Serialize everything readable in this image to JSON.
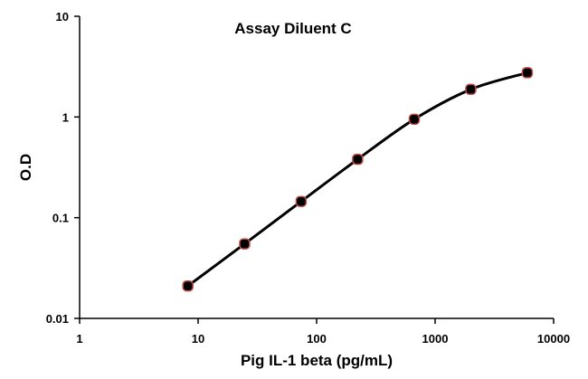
{
  "chart_data": {
    "type": "scatter",
    "title": "Assay Diluent C",
    "xlabel": "Pig IL-1 beta (pg/mL)",
    "ylabel": "O.D",
    "x_scale": "log",
    "y_scale": "log",
    "xlim": [
      1,
      10000
    ],
    "ylim": [
      0.01,
      10
    ],
    "x_ticks": [
      "1",
      "10",
      "100",
      "1000",
      "10000"
    ],
    "y_ticks": [
      "0.01",
      "0.1",
      "1",
      "10"
    ],
    "grid": false,
    "legend": "none",
    "series": [
      {
        "x": [
          8.2,
          24.7,
          74,
          222,
          667,
          2000,
          6000
        ],
        "y": [
          0.021,
          0.055,
          0.145,
          0.38,
          0.95,
          1.88,
          2.75
        ],
        "marker_color": "#000000",
        "marker_edge_color": "#c0504d",
        "line_color": "#000000"
      }
    ]
  }
}
